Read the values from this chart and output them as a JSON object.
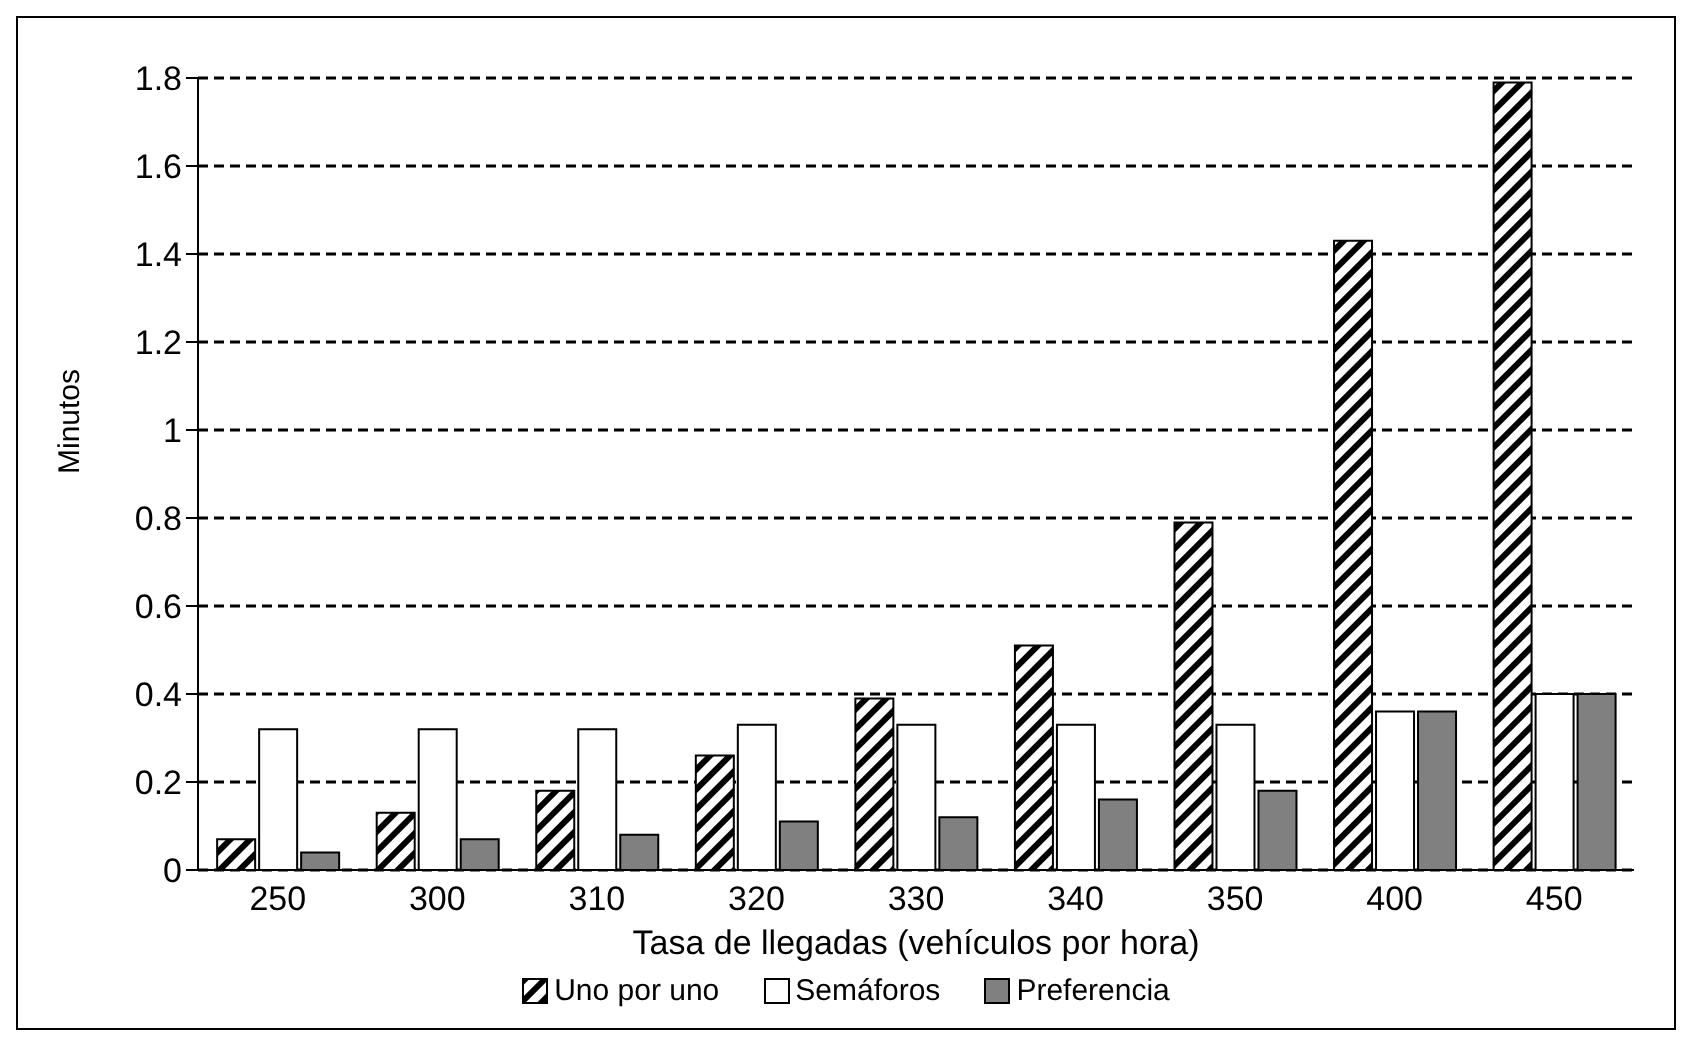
{
  "chart_data": {
    "type": "bar",
    "xlabel": "Tasa de llegadas (vehículos por hora)",
    "ylabel": "Minutos",
    "categories": [
      "250",
      "300",
      "310",
      "320",
      "330",
      "340",
      "350",
      "400",
      "450"
    ],
    "series": [
      {
        "name": "Uno por uno",
        "color": "#000000",
        "values": [
          0.07,
          0.13,
          0.18,
          0.26,
          0.39,
          0.51,
          0.79,
          1.43,
          1.79
        ]
      },
      {
        "name": "Semáforos",
        "color": "#ffffff",
        "values": [
          0.32,
          0.32,
          0.32,
          0.33,
          0.33,
          0.33,
          0.33,
          0.36,
          0.4
        ]
      },
      {
        "name": "Preferencia",
        "color": "#808080",
        "values": [
          0.04,
          0.07,
          0.08,
          0.11,
          0.12,
          0.16,
          0.18,
          0.36,
          0.4
        ]
      }
    ],
    "ylim": [
      0,
      1.8
    ],
    "yticks": [
      0,
      0.2,
      0.4,
      0.6,
      0.8,
      1,
      1.2,
      1.4,
      1.6,
      1.8
    ],
    "grid": "y",
    "legend": "bottom"
  }
}
